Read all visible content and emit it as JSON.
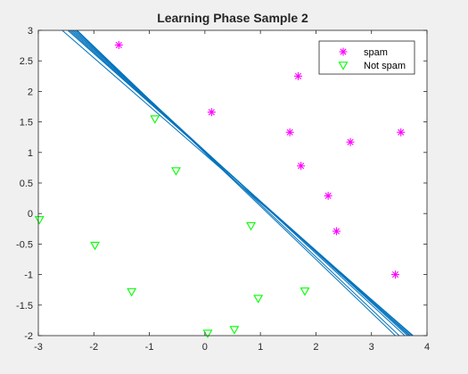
{
  "figure": {
    "background": "#f0f0f0"
  },
  "chart_data": {
    "type": "scatter",
    "title": "Learning Phase  Sample 2",
    "xlabel": "",
    "ylabel": "",
    "xlim": [
      -3,
      4
    ],
    "ylim": [
      -2,
      3
    ],
    "xticks": [
      -3,
      -2,
      -1,
      0,
      1,
      2,
      3,
      4
    ],
    "yticks": [
      -2,
      -1.5,
      -1,
      -0.5,
      0,
      0.5,
      1,
      1.5,
      2,
      2.5,
      3
    ],
    "xtick_labels": [
      "-3",
      "-2",
      "-1",
      "0",
      "1",
      "2",
      "3",
      "4"
    ],
    "ytick_labels": [
      "-2",
      "-1.5",
      "-1",
      "-0.5",
      "0",
      "0.5",
      "1",
      "1.5",
      "2",
      "2.5",
      "3"
    ],
    "grid": false,
    "legend": {
      "placement": "top-right",
      "entries": [
        "spam",
        "Not spam"
      ]
    },
    "series": [
      {
        "name": "spam",
        "marker": "asterisk",
        "color": "#ff00ff",
        "points": [
          [
            -1.55,
            2.76
          ],
          [
            0.12,
            1.66
          ],
          [
            1.68,
            2.25
          ],
          [
            1.53,
            1.33
          ],
          [
            2.62,
            1.17
          ],
          [
            3.53,
            1.33
          ],
          [
            1.73,
            0.78
          ],
          [
            2.22,
            0.29
          ],
          [
            2.37,
            -0.29
          ],
          [
            3.43,
            -1.0
          ]
        ]
      },
      {
        "name": "Not spam",
        "marker": "triangle-down",
        "color": "#00ff00",
        "points": [
          [
            -0.9,
            1.55
          ],
          [
            -0.52,
            0.7
          ],
          [
            -2.98,
            -0.1
          ],
          [
            -1.98,
            -0.52
          ],
          [
            0.83,
            -0.2
          ],
          [
            -1.32,
            -1.28
          ],
          [
            0.96,
            -1.39
          ],
          [
            1.8,
            -1.27
          ],
          [
            0.53,
            -1.9
          ],
          [
            0.05,
            -1.96
          ]
        ]
      }
    ],
    "decision_lines": {
      "color": "#0072bd",
      "lines": [
        [
          [
            -2.57,
            3.0
          ],
          [
            3.75,
            -2.0
          ]
        ],
        [
          [
            -2.47,
            3.0
          ],
          [
            3.73,
            -2.0
          ]
        ],
        [
          [
            -2.44,
            3.0
          ],
          [
            3.7,
            -2.0
          ]
        ],
        [
          [
            -2.41,
            3.0
          ],
          [
            3.68,
            -2.0
          ]
        ],
        [
          [
            -2.38,
            3.0
          ],
          [
            3.65,
            -2.0
          ]
        ],
        [
          [
            -2.35,
            3.0
          ],
          [
            3.6,
            -2.0
          ]
        ],
        [
          [
            -2.32,
            3.0
          ],
          [
            3.5,
            -2.0
          ]
        ],
        [
          [
            -2.3,
            3.0
          ],
          [
            3.43,
            -2.0
          ]
        ]
      ]
    }
  }
}
